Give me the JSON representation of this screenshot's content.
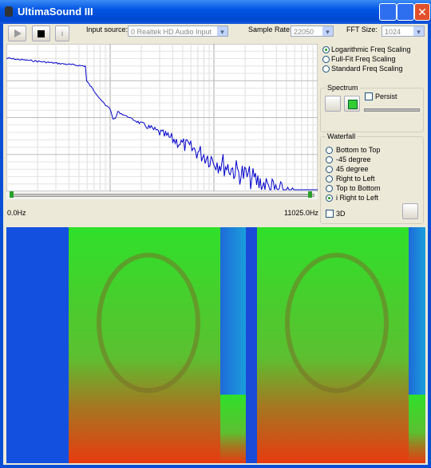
{
  "window": {
    "title": "UltimaSound III"
  },
  "toolbar": {
    "pause_button": "i",
    "input_label": "Input source:",
    "input_value": "0 Realtek HD Audio Input",
    "rate_label": "Sample Rate:",
    "rate_value": "22050",
    "fft_label": "FFT Size:",
    "fft_value": "1024"
  },
  "scaling": {
    "options": [
      "Logarithmic Freq Scaling",
      "Full-Fit Freq Scaling",
      "Standard Freq Scaling"
    ]
  },
  "spectrum": {
    "group": "Spectrum",
    "persist": "Persist"
  },
  "waterfall": {
    "group": "Waterfall",
    "options": [
      "Bottom to Top",
      "-45 degree",
      "45 degree",
      "Right to Left",
      "Top to Bottom",
      "i Right to Left"
    ],
    "three_d": "3D"
  },
  "axis": {
    "min_label": "0.0Hz",
    "max_label": "11025.0Hz"
  }
}
